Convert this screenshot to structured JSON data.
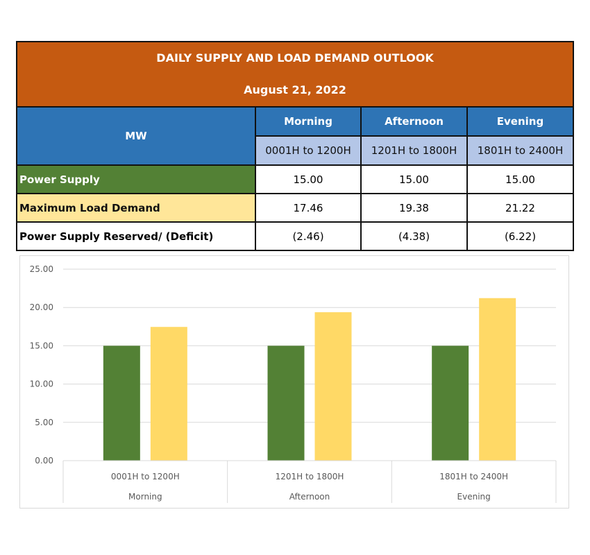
{
  "table": {
    "title": "DAILY SUPPLY AND LOAD DEMAND OUTLOOK",
    "date": "August 21, 2022",
    "unit_header": "MW",
    "periods": [
      {
        "name": "Morning",
        "range": "0001H to 1200H"
      },
      {
        "name": "Afternoon",
        "range": "1201H to 1800H"
      },
      {
        "name": "Evening",
        "range": "1801H to 2400H"
      }
    ],
    "rows": [
      {
        "label": "Power Supply",
        "values": [
          "15.00",
          "15.00",
          "15.00"
        ]
      },
      {
        "label": "Maximum Load Demand",
        "values": [
          "17.46",
          "19.38",
          "21.22"
        ]
      },
      {
        "label": "Power Supply Reserved/ (Deficit)",
        "values": [
          "(2.46)",
          "(4.38)",
          "(6.22)"
        ]
      }
    ]
  },
  "chart_data": {
    "type": "bar",
    "categories": [
      {
        "range": "0001H to 1200H",
        "name": "Morning"
      },
      {
        "range": "1201H to 1800H",
        "name": "Afternoon"
      },
      {
        "range": "1801H to 2400H",
        "name": "Evening"
      }
    ],
    "series": [
      {
        "values": [
          15.0,
          15.0,
          15.0
        ],
        "color": "#538135"
      },
      {
        "values": [
          17.46,
          19.38,
          21.22
        ],
        "color": "#FFD966"
      }
    ],
    "ylim": [
      0,
      25
    ],
    "yticks": [
      "0.00",
      "5.00",
      "10.00",
      "15.00",
      "20.00",
      "25.00"
    ],
    "grid": true,
    "legend": "none"
  }
}
